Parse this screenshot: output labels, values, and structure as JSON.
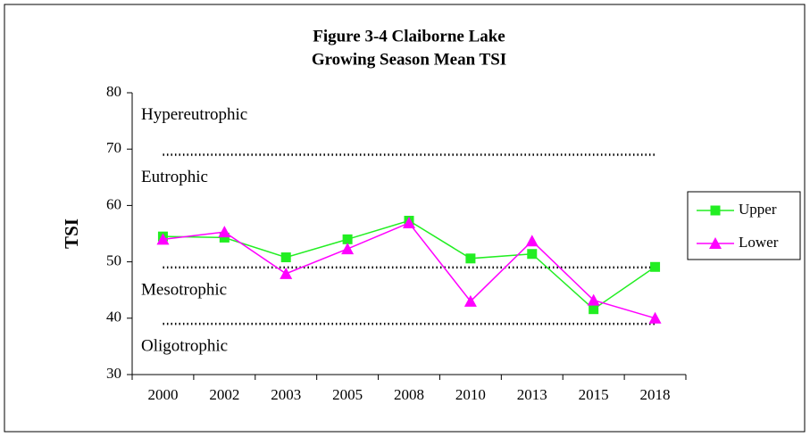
{
  "chart_data": {
    "type": "line",
    "title": "Figure 3-4 Claiborne Lake",
    "subtitle": "Growing Season Mean TSI",
    "y_label": "TSI",
    "categories": [
      "2000",
      "2002",
      "2003",
      "2005",
      "2008",
      "2010",
      "2013",
      "2015",
      "2018"
    ],
    "series": [
      {
        "name": "Upper",
        "color": "#22ee22",
        "marker": "square",
        "values": [
          54.5,
          54.3,
          50.8,
          54.0,
          57.3,
          50.6,
          51.4,
          41.6,
          49.1
        ]
      },
      {
        "name": "Lower",
        "color": "#ff00ff",
        "marker": "triangle",
        "values": [
          54.0,
          55.3,
          47.9,
          52.3,
          56.9,
          43.0,
          53.7,
          43.2,
          40.0
        ]
      }
    ],
    "boundaries": [
      69,
      49,
      39
    ],
    "zones": [
      "Hypereutrophic",
      "Eutrophic",
      "Mesotrophic",
      "Oligotrophic"
    ],
    "ylim": [
      30,
      80
    ],
    "yticks": [
      30,
      40,
      50,
      60,
      70,
      80
    ],
    "grid": false,
    "legend": "right"
  }
}
